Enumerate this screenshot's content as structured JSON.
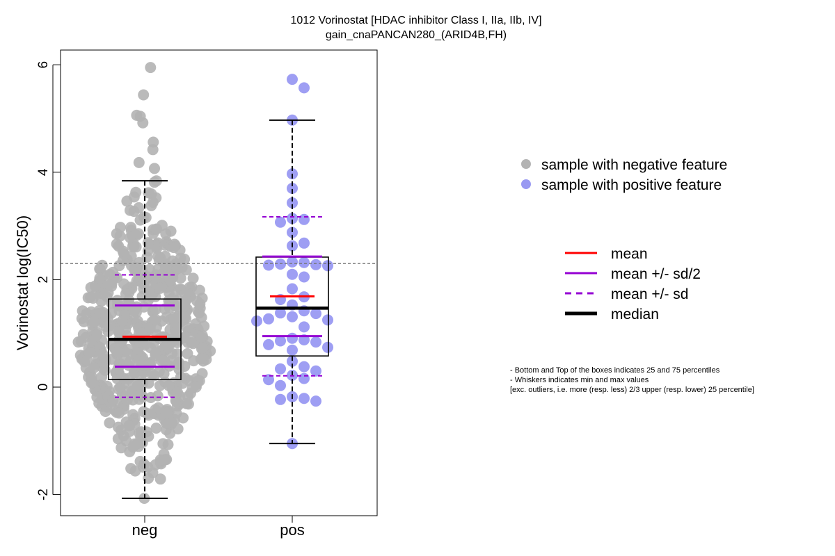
{
  "chart_data": {
    "type": "scatter",
    "title_line1": "1012 Vorinostat [HDAC inhibitor Class I, IIa, IIb, IV]",
    "title_line2": "gain_cnaPANCAN280_(ARID4B,FH)",
    "ylabel": "Vorinostat log(IC50)",
    "xlabel": "",
    "categories": [
      "neg",
      "pos"
    ],
    "ylim": [
      -2.35,
      6.3
    ],
    "yticks": [
      -2,
      0,
      2,
      4,
      6
    ],
    "ytick_labels": [
      "-2",
      "0",
      "2",
      "4",
      "6"
    ],
    "reference_line": 2.3,
    "grid": false,
    "groups": [
      {
        "category": "neg",
        "color": "#b3b3b3",
        "box": {
          "q1": 0.14,
          "median": 0.89,
          "q3": 1.64,
          "whisker_low": -2.07,
          "whisker_high": 3.84
        },
        "mean": 0.94,
        "mean_plus_half_sd": 1.52,
        "mean_minus_half_sd": 0.38,
        "mean_plus_sd": 2.09,
        "mean_minus_sd": -0.19,
        "outliers": [
          5.95,
          5.44,
          5.06,
          5.04,
          4.92,
          4.56,
          4.42,
          4.18,
          4.07
        ],
        "n_points": 620
      },
      {
        "category": "pos",
        "color": "#9999f2",
        "box": {
          "q1": 0.58,
          "median": 1.47,
          "q3": 2.42,
          "whisker_low": -1.05,
          "whisker_high": 4.97
        },
        "mean": 1.69,
        "mean_plus_half_sd": 2.43,
        "mean_minus_half_sd": 0.95,
        "mean_plus_sd": 3.17,
        "mean_minus_sd": 0.21,
        "values": [
          5.73,
          5.57,
          4.97,
          3.97,
          3.7,
          3.43,
          3.14,
          3.12,
          3.07,
          2.88,
          2.68,
          2.63,
          2.33,
          2.32,
          2.29,
          2.28,
          2.27,
          2.26,
          2.1,
          2.05,
          1.83,
          1.68,
          1.63,
          1.53,
          1.42,
          1.38,
          1.37,
          1.31,
          1.27,
          1.25,
          1.23,
          1.12,
          0.91,
          0.88,
          0.86,
          0.84,
          0.79,
          0.74,
          0.69,
          0.48,
          0.38,
          0.34,
          0.3,
          0.22,
          0.16,
          0.14,
          0.03,
          -0.18,
          -0.21,
          -0.23,
          -0.26,
          -1.05
        ]
      }
    ]
  },
  "legend_points": [
    {
      "label": "sample with negative feature",
      "color": "#b3b3b3"
    },
    {
      "label": "sample with positive feature",
      "color": "#9999f2"
    }
  ],
  "legend_lines": [
    {
      "label": "mean",
      "color": "#ff0000",
      "style": "solid"
    },
    {
      "label": "mean +/- sd/2",
      "color": "#9400d3",
      "style": "solid"
    },
    {
      "label": "mean +/- sd",
      "color": "#9400d3",
      "style": "dashed"
    },
    {
      "label": "median",
      "color": "#000000",
      "style": "thick"
    }
  ],
  "notes": [
    "- Bottom and Top of the boxes indicates 25 and 75 percentiles",
    "- Whiskers indicates min and max values",
    "[exc. outliers, i.e. more (resp. less) 2/3 upper (resp. lower) 25 percentile]"
  ]
}
